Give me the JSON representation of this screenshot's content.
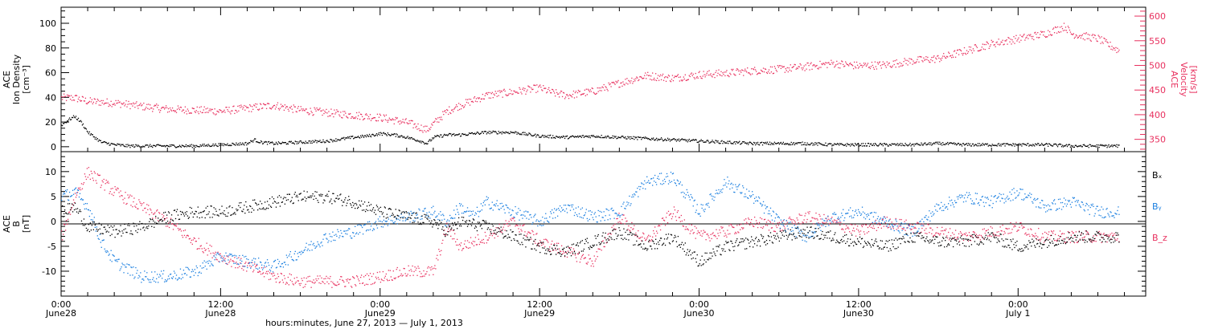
{
  "chart_data": [
    {
      "type": "scatter",
      "panel": "top",
      "ylabel_left": [
        "ACE",
        "Ion Density",
        "[cm⁻³]"
      ],
      "ylabel_right": [
        "ACE",
        "Velocity",
        "[km/s]"
      ],
      "ylim_left": [
        -4,
        113
      ],
      "ylim_right": [
        325,
        618
      ],
      "yticks_left": [
        "0",
        "20",
        "40",
        "60",
        "80",
        "100"
      ],
      "yticks_right": [
        "350",
        "400",
        "450",
        "500",
        "550",
        "600"
      ],
      "xlim_hours": [
        0,
        81.6
      ],
      "series": [
        {
          "name": "Ion Density",
          "axis": "left",
          "color": "#000000",
          "x": [
            0,
            0.5,
            1,
            1.5,
            2,
            2.5,
            3,
            4,
            5,
            6,
            8,
            10,
            12,
            14,
            14.5,
            15,
            16,
            18,
            20,
            22,
            23,
            24,
            25,
            26,
            27,
            27.5,
            28,
            29,
            30,
            32,
            34,
            36,
            38,
            40,
            42,
            44,
            46,
            48,
            50,
            52,
            54,
            56,
            58,
            60,
            62,
            64,
            66,
            68,
            70,
            72,
            74,
            76,
            78,
            79.6
          ],
          "y": [
            18,
            22,
            25,
            20,
            12,
            8,
            4,
            2,
            1,
            1,
            1,
            1,
            2,
            3,
            6,
            4,
            3,
            4,
            5,
            8,
            9,
            11,
            10,
            8,
            5,
            3,
            8,
            10,
            10,
            12,
            12,
            9,
            8,
            9,
            8,
            7,
            6,
            5,
            4,
            3,
            3,
            3,
            2,
            2,
            2,
            2,
            3,
            2,
            2,
            2,
            2,
            1,
            1,
            1
          ]
        },
        {
          "name": "Velocity",
          "axis": "right",
          "color": "#e8315f",
          "x": [
            0,
            1,
            2,
            4,
            6,
            8,
            10,
            12,
            14,
            16,
            18,
            20,
            22,
            24,
            26,
            27.5,
            29,
            30,
            32,
            34,
            36,
            37,
            38,
            40,
            42,
            44,
            46,
            48,
            50,
            52,
            54,
            56,
            58,
            60,
            62,
            64,
            66,
            68,
            70,
            72,
            74,
            75.5,
            76,
            78,
            79.6
          ],
          "y": [
            435,
            435,
            428,
            425,
            418,
            412,
            410,
            408,
            414,
            420,
            410,
            405,
            400,
            395,
            385,
            370,
            408,
            420,
            440,
            447,
            455,
            445,
            440,
            448,
            465,
            480,
            475,
            482,
            485,
            490,
            493,
            498,
            505,
            500,
            502,
            510,
            515,
            530,
            545,
            555,
            565,
            580,
            565,
            555,
            530
          ]
        }
      ]
    },
    {
      "type": "scatter",
      "panel": "bottom",
      "ylabel_left": [
        "ACE",
        "B",
        "[nT]"
      ],
      "ylim": [
        -15,
        14
      ],
      "yticks": [
        "-10",
        "-5",
        "0",
        "5",
        "10"
      ],
      "zero_line": true,
      "xlim_hours": [
        0,
        81.6
      ],
      "legend_position": "right",
      "series": [
        {
          "name": "Bₓ",
          "color": "#000000",
          "x": [
            0,
            1,
            2,
            4,
            6,
            8,
            10,
            12,
            14,
            16,
            18,
            20,
            22,
            24,
            26,
            28,
            29,
            30,
            32,
            34,
            36,
            38,
            40,
            42,
            44,
            46,
            48,
            50,
            52,
            54,
            56,
            58,
            60,
            62,
            64,
            66,
            68,
            70,
            72,
            74,
            76,
            78,
            79.6
          ],
          "y": [
            2,
            3,
            -1,
            -2,
            -1,
            1,
            2,
            2,
            3,
            4,
            5,
            5,
            4,
            2,
            1,
            0,
            -2,
            0,
            -1,
            -3,
            -5,
            -6,
            -4,
            -2,
            -5,
            -3,
            -8,
            -5,
            -4,
            -3,
            -2,
            -3,
            -4,
            -5,
            -3,
            -4,
            -4,
            -3,
            -5,
            -4,
            -3,
            -3,
            -3
          ]
        },
        {
          "name": "Bᵧ",
          "color": "#1a7fe0",
          "x": [
            0,
            1,
            2,
            3,
            4,
            6,
            8,
            10,
            12,
            14,
            16,
            18,
            20,
            22,
            24,
            26,
            28,
            29,
            30,
            31,
            32,
            34,
            36,
            38,
            40,
            42,
            44,
            46,
            48,
            50,
            52,
            54,
            56,
            58,
            60,
            62,
            64,
            66,
            68,
            70,
            72,
            74,
            76,
            78,
            79.6
          ],
          "y": [
            5,
            6,
            3,
            -4,
            -8,
            -11,
            -11,
            -10,
            -7,
            -8,
            -9,
            -6,
            -3,
            -2,
            0,
            1,
            2,
            0,
            3,
            1,
            4,
            2,
            0,
            3,
            1,
            2,
            8,
            9,
            2,
            8,
            5,
            0,
            -3,
            1,
            2,
            0,
            -2,
            3,
            5,
            4,
            6,
            3,
            4,
            2,
            2
          ]
        },
        {
          "name": "B_z",
          "color": "#e8315f",
          "x": [
            0,
            1,
            2,
            3,
            4,
            6,
            8,
            10,
            12,
            14,
            16,
            18,
            20,
            22,
            24,
            26,
            28,
            29,
            30,
            32,
            34,
            36,
            38,
            40,
            42,
            44,
            46,
            48,
            50,
            52,
            54,
            56,
            58,
            60,
            62,
            64,
            66,
            68,
            70,
            72,
            74,
            76,
            78,
            79.6
          ],
          "y": [
            -3,
            5,
            10,
            8,
            6,
            3,
            0,
            -4,
            -7,
            -9,
            -11,
            -12,
            -12,
            -12,
            -11,
            -10,
            -10,
            -1,
            -5,
            -3,
            0,
            -4,
            -6,
            -8,
            1,
            -4,
            2,
            -3,
            -2,
            0,
            -1,
            1,
            0,
            -2,
            0,
            -1,
            -2,
            -3,
            -2,
            -1,
            -3,
            -3,
            -3,
            -3
          ]
        }
      ]
    }
  ],
  "x_axis": {
    "label": "hours:minutes, June 27, 2013 — July  1, 2013",
    "ticks": [
      {
        "hours": 0,
        "time": "0:00",
        "date": "June28"
      },
      {
        "hours": 12,
        "time": "12:00",
        "date": "June28"
      },
      {
        "hours": 24,
        "time": "0:00",
        "date": "June29"
      },
      {
        "hours": 36,
        "time": "12:00",
        "date": "June29"
      },
      {
        "hours": 48,
        "time": "0:00",
        "date": "June30"
      },
      {
        "hours": 60,
        "time": "12:00",
        "date": "June30"
      },
      {
        "hours": 72,
        "time": "0:00",
        "date": "July  1"
      }
    ]
  },
  "colors": {
    "black": "#000000",
    "red": "#e8315f",
    "blue": "#1a7fe0"
  }
}
